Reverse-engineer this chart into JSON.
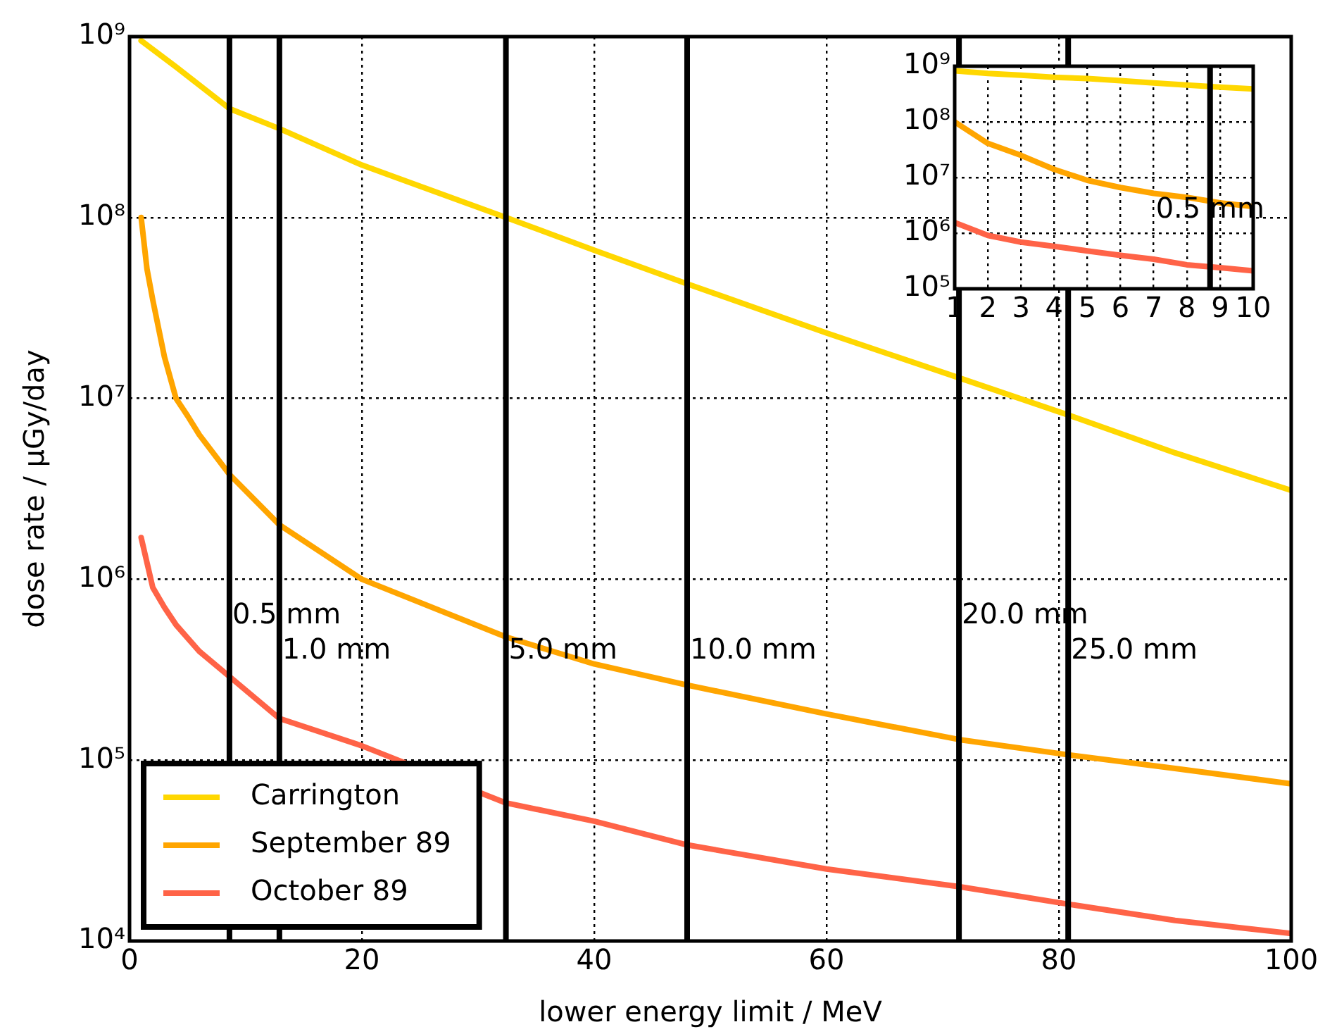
{
  "chart_data": [
    {
      "type": "line",
      "xlabel": "lower energy limit / MeV",
      "ylabel": "dose rate / μGy/day",
      "log": "y",
      "grid": true,
      "legend": "bottom left",
      "xlim": [
        0,
        100
      ],
      "xticks": [
        0,
        20,
        40,
        60,
        80,
        100
      ],
      "ylim": [
        10000,
        1000000000
      ],
      "yticks": [
        {
          "value": 10000,
          "label": "10⁴"
        },
        {
          "value": 100000,
          "label": "10⁵"
        },
        {
          "value": 1000000,
          "label": "10⁶"
        },
        {
          "value": 10000000,
          "label": "10⁷"
        },
        {
          "value": 100000000,
          "label": "10⁸"
        },
        {
          "value": 1000000000,
          "label": "10⁹"
        }
      ],
      "series": [
        {
          "name": "Carrington",
          "color": "#ffd700",
          "x": [
            1,
            4,
            8.6,
            12.9,
            20,
            32.4,
            40,
            48,
            60,
            71.4,
            80.8,
            90,
            100
          ],
          "values": [
            950000000,
            680000000,
            400000000,
            310000000,
            195000000,
            100000000,
            66000000,
            43000000,
            23000000,
            13000000,
            8100000,
            5000000,
            3100000
          ]
        },
        {
          "name": "September 89",
          "color": "#ffa500",
          "x": [
            1,
            1.5,
            2,
            3,
            4,
            5,
            6,
            8.6,
            12.9,
            20,
            32.4,
            40,
            48,
            60,
            71.4,
            80.8,
            90,
            100
          ],
          "values": [
            100000000,
            52000000,
            35000000,
            17000000,
            10000000,
            8000000,
            6300000,
            3800000,
            2000000,
            1000000,
            480000,
            340000,
            260000,
            180000,
            130000,
            107000,
            90000,
            74000
          ]
        },
        {
          "name": "October 89",
          "color": "#ff6347",
          "x": [
            1,
            2,
            3,
            4,
            6,
            8.6,
            12.9,
            20,
            32.4,
            40,
            48,
            60,
            71.4,
            80.8,
            90,
            100
          ],
          "values": [
            1700000,
            900000,
            700000,
            560000,
            400000,
            290000,
            170000,
            120000,
            58000,
            46000,
            34000,
            25000,
            20000,
            16000,
            13000,
            11000
          ]
        }
      ],
      "ref_lines": [
        {
          "axis": "x",
          "value": 8.6,
          "label": "0.5 mm"
        },
        {
          "axis": "x",
          "value": 12.9,
          "label": "1.0 mm"
        },
        {
          "axis": "x",
          "value": 32.4,
          "label": "5.0 mm"
        },
        {
          "axis": "x",
          "value": 48,
          "label": "10.0 mm"
        },
        {
          "axis": "x",
          "value": 71.4,
          "label": "20.0 mm"
        },
        {
          "axis": "x",
          "value": 80.8,
          "label": "25.0 mm"
        }
      ]
    },
    {
      "type": "line",
      "log": "y",
      "grid": true,
      "xlim": [
        1,
        10
      ],
      "xticks": [
        1,
        2,
        3,
        4,
        5,
        6,
        7,
        8,
        9,
        10
      ],
      "ylim": [
        100000,
        1000000000
      ],
      "yticks": [
        {
          "value": 100000,
          "label": "10⁵"
        },
        {
          "value": 1000000,
          "label": "10⁶"
        },
        {
          "value": 10000000,
          "label": "10⁷"
        },
        {
          "value": 100000000,
          "label": "10⁸"
        },
        {
          "value": 1000000000,
          "label": "10⁹"
        }
      ],
      "x": [
        1,
        2,
        3,
        4,
        5,
        6,
        7,
        8,
        9,
        10
      ],
      "series": [
        {
          "color": "#ffd700",
          "values": [
            830000000,
            740000000,
            690000000,
            630000000,
            600000000,
            550000000,
            500000000,
            460000000,
            420000000,
            390000000
          ]
        },
        {
          "color": "#ffa500",
          "values": [
            100000000,
            41000000,
            25000000,
            14000000,
            8900000,
            6600000,
            5200000,
            4400000,
            3500000,
            3000000
          ]
        },
        {
          "color": "#ff6347",
          "values": [
            1550000,
            910000,
            690000,
            580000,
            480000,
            400000,
            340000,
            270000,
            240000,
            210000
          ]
        }
      ],
      "ref_lines": [
        {
          "axis": "x",
          "value": 8.7,
          "label": "0.5 mm"
        }
      ]
    }
  ]
}
